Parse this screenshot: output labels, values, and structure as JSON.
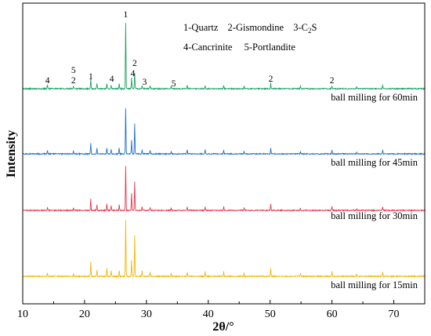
{
  "chart_data": {
    "type": "line",
    "xlabel": "2θ/°",
    "ylabel": "Intensity",
    "xlim": [
      10,
      75
    ],
    "xticks": [
      "10",
      "20",
      "30",
      "40",
      "50",
      "60",
      "70"
    ],
    "grid": false,
    "legend": {
      "placement": "top-right",
      "line1": [
        "1-Quartz",
        "2-Gismondine",
        "3-C",
        "2",
        "S"
      ],
      "line2": [
        "4-Cancrinite",
        "5-Portlandite"
      ]
    },
    "series": [
      {
        "name": "ball milling for 60min",
        "color": "#1aa260",
        "peaks": [
          {
            "x": 14.0,
            "h": 5
          },
          {
            "x": 18.2,
            "h": 3
          },
          {
            "x": 21.0,
            "h": 12
          },
          {
            "x": 22.0,
            "h": 6
          },
          {
            "x": 23.6,
            "h": 7
          },
          {
            "x": 24.3,
            "h": 5
          },
          {
            "x": 25.6,
            "h": 6
          },
          {
            "x": 26.65,
            "h": 84
          },
          {
            "x": 27.6,
            "h": 14
          },
          {
            "x": 28.1,
            "h": 20
          },
          {
            "x": 29.3,
            "h": 4
          },
          {
            "x": 30.6,
            "h": 4
          },
          {
            "x": 34.0,
            "h": 3
          },
          {
            "x": 36.6,
            "h": 4
          },
          {
            "x": 39.5,
            "h": 4
          },
          {
            "x": 42.5,
            "h": 4
          },
          {
            "x": 45.8,
            "h": 3
          },
          {
            "x": 50.1,
            "h": 7
          },
          {
            "x": 54.9,
            "h": 3
          },
          {
            "x": 60.0,
            "h": 4
          },
          {
            "x": 64.0,
            "h": 2
          },
          {
            "x": 68.2,
            "h": 5
          }
        ]
      },
      {
        "name": "ball milling for 45min",
        "color": "#1f6fd1",
        "peaks": [
          {
            "x": 14.0,
            "h": 5
          },
          {
            "x": 18.2,
            "h": 3
          },
          {
            "x": 21.0,
            "h": 13
          },
          {
            "x": 22.0,
            "h": 7
          },
          {
            "x": 23.6,
            "h": 8
          },
          {
            "x": 24.3,
            "h": 6
          },
          {
            "x": 25.6,
            "h": 7
          },
          {
            "x": 26.65,
            "h": 58
          },
          {
            "x": 27.6,
            "h": 17
          },
          {
            "x": 28.1,
            "h": 38
          },
          {
            "x": 29.3,
            "h": 5
          },
          {
            "x": 30.6,
            "h": 4
          },
          {
            "x": 34.0,
            "h": 3
          },
          {
            "x": 36.6,
            "h": 5
          },
          {
            "x": 39.5,
            "h": 5
          },
          {
            "x": 42.5,
            "h": 5
          },
          {
            "x": 45.8,
            "h": 3
          },
          {
            "x": 50.1,
            "h": 7
          },
          {
            "x": 54.9,
            "h": 3
          },
          {
            "x": 60.0,
            "h": 5
          },
          {
            "x": 64.0,
            "h": 2
          },
          {
            "x": 68.2,
            "h": 5
          }
        ]
      },
      {
        "name": "ball milling for 30min",
        "color": "#e8384f",
        "peaks": [
          {
            "x": 14.0,
            "h": 4
          },
          {
            "x": 18.2,
            "h": 3
          },
          {
            "x": 21.0,
            "h": 14
          },
          {
            "x": 22.0,
            "h": 7
          },
          {
            "x": 23.6,
            "h": 9
          },
          {
            "x": 24.3,
            "h": 6
          },
          {
            "x": 25.6,
            "h": 7
          },
          {
            "x": 26.65,
            "h": 56
          },
          {
            "x": 27.6,
            "h": 22
          },
          {
            "x": 28.1,
            "h": 37
          },
          {
            "x": 29.3,
            "h": 5
          },
          {
            "x": 30.6,
            "h": 4
          },
          {
            "x": 34.0,
            "h": 3
          },
          {
            "x": 36.6,
            "h": 4
          },
          {
            "x": 39.5,
            "h": 5
          },
          {
            "x": 42.5,
            "h": 5
          },
          {
            "x": 45.8,
            "h": 3
          },
          {
            "x": 50.1,
            "h": 8
          },
          {
            "x": 54.9,
            "h": 3
          },
          {
            "x": 60.0,
            "h": 5
          },
          {
            "x": 64.0,
            "h": 2
          },
          {
            "x": 68.2,
            "h": 5
          }
        ]
      },
      {
        "name": "ball milling for 15min",
        "color": "#f2b705",
        "peaks": [
          {
            "x": 14.0,
            "h": 5
          },
          {
            "x": 18.2,
            "h": 3
          },
          {
            "x": 21.0,
            "h": 18
          },
          {
            "x": 22.0,
            "h": 8
          },
          {
            "x": 23.6,
            "h": 11
          },
          {
            "x": 24.3,
            "h": 7
          },
          {
            "x": 25.6,
            "h": 7
          },
          {
            "x": 26.65,
            "h": 72
          },
          {
            "x": 27.6,
            "h": 20
          },
          {
            "x": 28.1,
            "h": 52
          },
          {
            "x": 29.3,
            "h": 7
          },
          {
            "x": 30.6,
            "h": 5
          },
          {
            "x": 34.0,
            "h": 4
          },
          {
            "x": 36.6,
            "h": 5
          },
          {
            "x": 39.5,
            "h": 6
          },
          {
            "x": 42.5,
            "h": 6
          },
          {
            "x": 45.8,
            "h": 4
          },
          {
            "x": 50.1,
            "h": 10
          },
          {
            "x": 54.9,
            "h": 4
          },
          {
            "x": 60.0,
            "h": 6
          },
          {
            "x": 64.0,
            "h": 3
          },
          {
            "x": 68.2,
            "h": 6
          }
        ]
      }
    ],
    "peak_annotations": [
      {
        "x": 14.0,
        "label": "4"
      },
      {
        "x": 18.2,
        "label": "2"
      },
      {
        "x": 18.2,
        "label": "5"
      },
      {
        "x": 21.0,
        "label": "1"
      },
      {
        "x": 24.4,
        "label": "4"
      },
      {
        "x": 26.65,
        "label": "1"
      },
      {
        "x": 27.8,
        "label": "4"
      },
      {
        "x": 28.1,
        "label": "2"
      },
      {
        "x": 29.7,
        "label": "3"
      },
      {
        "x": 34.4,
        "label": "5"
      },
      {
        "x": 50.1,
        "label": "2"
      },
      {
        "x": 60.0,
        "label": "2"
      }
    ]
  }
}
